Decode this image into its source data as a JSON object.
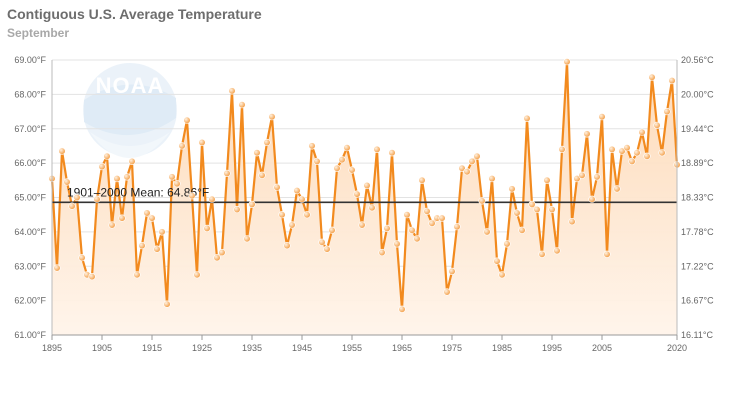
{
  "title": "Contiguous U.S. Average Temperature",
  "subtitle": "September",
  "colors": {
    "line": "#f28a1e",
    "marker": "#f7a04a",
    "fill_top": "#fdd8b4",
    "fill_bottom": "#fff4ea",
    "mean_line": "#333333",
    "grid": "#e3e3e3",
    "logo": "#cfe4f4"
  },
  "chart_data": {
    "type": "line",
    "title": "Contiguous U.S. Average Temperature",
    "subtitle": "September",
    "xlabel": "",
    "ylabel": "",
    "xlim": [
      1895,
      2020
    ],
    "ylim": [
      61,
      69
    ],
    "y_ticks_left": [
      "61.00°F",
      "62.00°F",
      "63.00°F",
      "64.00°F",
      "65.00°F",
      "66.00°F",
      "67.00°F",
      "68.00°F",
      "69.00°F"
    ],
    "y_ticks_right": [
      "16.11°C",
      "16.67°C",
      "17.22°C",
      "17.78°C",
      "18.33°C",
      "18.89°C",
      "19.44°C",
      "20.00°C",
      "20.56°C"
    ],
    "x_ticks": [
      "1895",
      "1905",
      "1915",
      "1925",
      "1935",
      "1945",
      "1955",
      "1965",
      "1975",
      "1985",
      "1995",
      "2005",
      "2020"
    ],
    "mean": {
      "label": "1901–2000 Mean: 64.86°F",
      "value": 64.86
    },
    "series": [
      {
        "name": "Average Temperature",
        "x": [
          1895,
          1896,
          1897,
          1898,
          1899,
          1900,
          1901,
          1902,
          1903,
          1904,
          1905,
          1906,
          1907,
          1908,
          1909,
          1910,
          1911,
          1912,
          1913,
          1914,
          1915,
          1916,
          1917,
          1918,
          1919,
          1920,
          1921,
          1922,
          1923,
          1924,
          1925,
          1926,
          1927,
          1928,
          1929,
          1930,
          1931,
          1932,
          1933,
          1934,
          1935,
          1936,
          1937,
          1938,
          1939,
          1940,
          1941,
          1942,
          1943,
          1944,
          1945,
          1946,
          1947,
          1948,
          1949,
          1950,
          1951,
          1952,
          1953,
          1954,
          1955,
          1956,
          1957,
          1958,
          1959,
          1960,
          1961,
          1962,
          1963,
          1964,
          1965,
          1966,
          1967,
          1968,
          1969,
          1970,
          1971,
          1972,
          1973,
          1974,
          1975,
          1976,
          1977,
          1978,
          1979,
          1980,
          1981,
          1982,
          1983,
          1984,
          1985,
          1986,
          1987,
          1988,
          1989,
          1990,
          1991,
          1992,
          1993,
          1994,
          1995,
          1996,
          1997,
          1998,
          1999,
          2000,
          2001,
          2002,
          2003,
          2004,
          2005,
          2006,
          2007,
          2008,
          2009,
          2010,
          2011,
          2012,
          2013,
          2014,
          2015,
          2016,
          2017,
          2018,
          2019,
          2020
        ],
        "values": [
          65.55,
          62.95,
          66.35,
          65.45,
          64.75,
          65.0,
          63.25,
          62.75,
          62.7,
          64.95,
          65.9,
          66.2,
          64.2,
          65.55,
          64.4,
          65.6,
          66.05,
          62.75,
          63.6,
          64.55,
          64.4,
          63.5,
          64.0,
          61.9,
          65.6,
          65.4,
          66.5,
          67.25,
          65.05,
          62.75,
          66.6,
          64.1,
          64.95,
          63.25,
          63.4,
          65.7,
          68.1,
          64.65,
          67.7,
          63.8,
          64.8,
          66.3,
          65.65,
          66.6,
          67.35,
          65.3,
          64.5,
          63.6,
          64.2,
          65.2,
          64.95,
          64.5,
          66.5,
          66.05,
          63.7,
          63.5,
          64.05,
          65.85,
          66.1,
          66.45,
          65.8,
          65.1,
          64.2,
          65.35,
          64.7,
          66.4,
          63.4,
          64.1,
          66.3,
          63.65,
          61.75,
          64.5,
          64.05,
          63.8,
          65.5,
          64.6,
          64.25,
          64.4,
          64.4,
          62.25,
          62.85,
          64.15,
          65.85,
          65.75,
          66.05,
          66.2,
          64.9,
          64.0,
          65.55,
          63.15,
          62.75,
          63.65,
          65.25,
          64.55,
          64.05,
          67.3,
          64.8,
          64.65,
          63.35,
          65.5,
          64.65,
          63.45,
          66.4,
          68.95,
          64.3,
          65.55,
          65.65,
          66.85,
          64.95,
          65.6,
          67.35,
          63.35,
          66.4,
          65.25,
          66.35,
          66.45,
          66.05,
          66.3,
          66.9,
          66.2,
          68.5,
          67.1,
          66.3,
          67.5,
          68.4,
          65.95
        ]
      }
    ]
  }
}
